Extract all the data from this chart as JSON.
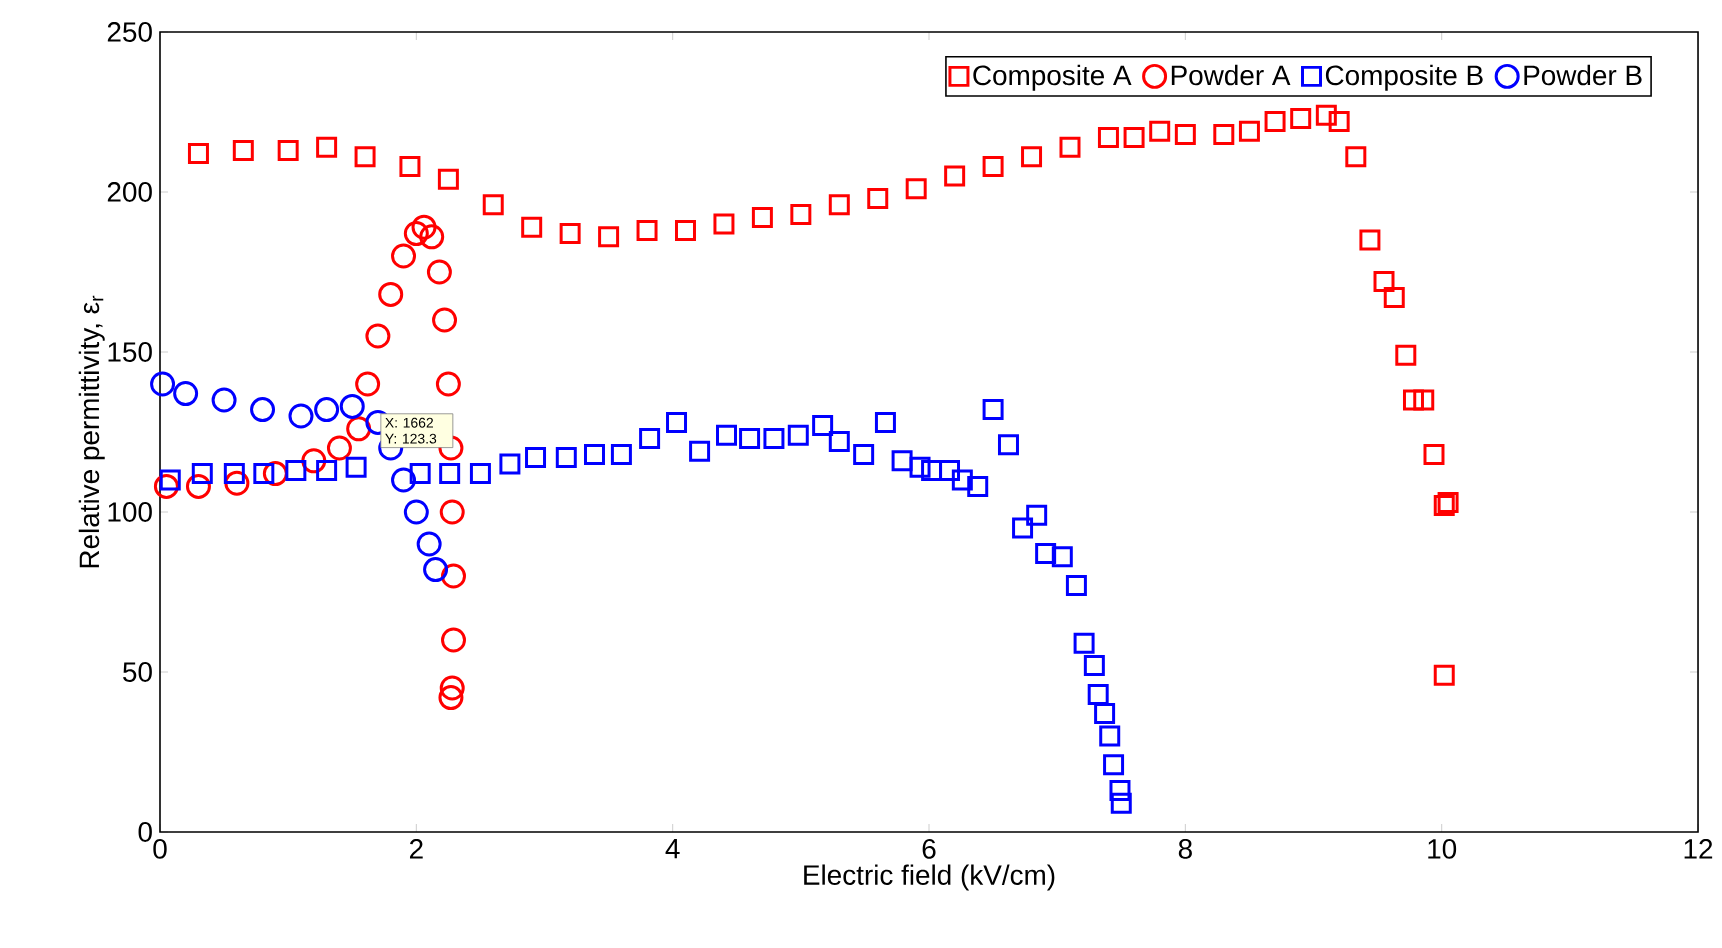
{
  "chart_data": {
    "type": "scatter",
    "xlabel": "Electric field (kV/cm)",
    "ylabel": "Relative permittivity, ε$_{r}$",
    "xlim": [
      0,
      12
    ],
    "ylim": [
      0,
      250
    ],
    "xticks": [
      0,
      2,
      4,
      6,
      8,
      10,
      12
    ],
    "yticks": [
      0,
      50,
      100,
      150,
      200,
      250
    ],
    "grid": false,
    "legend": "top right",
    "annotations": [
      "X: 1662 Y: 123.3"
    ],
    "series": [
      {
        "name": "Composite A",
        "color": "#ff0000",
        "marker": "square",
        "x": [
          0.3,
          0.65,
          1.0,
          1.3,
          1.6,
          1.95,
          2.25,
          2.6,
          2.9,
          3.2,
          3.5,
          3.8,
          4.1,
          4.4,
          4.7,
          5.0,
          5.3,
          5.6,
          5.9,
          6.2,
          6.5,
          6.8,
          7.1,
          7.4,
          7.6,
          7.8,
          8.0,
          8.3,
          8.5,
          8.7,
          8.9,
          9.1,
          9.2,
          9.33,
          9.44,
          9.55,
          9.63,
          9.72,
          9.78,
          9.86,
          9.94,
          10.02,
          10.05,
          10.02
        ],
        "values": [
          212,
          213,
          213,
          214,
          211,
          208,
          204,
          196,
          189,
          187,
          186,
          188,
          188,
          190,
          192,
          193,
          196,
          198,
          201,
          205,
          208,
          211,
          214,
          217,
          217,
          219,
          218,
          218,
          219,
          222,
          223,
          224,
          222,
          211,
          185,
          172,
          167,
          149,
          135,
          135,
          118,
          102,
          103,
          49
        ]
      },
      {
        "name": "Powder A",
        "color": "#ff0000",
        "marker": "circle",
        "x": [
          0.05,
          0.3,
          0.6,
          0.9,
          1.2,
          1.4,
          1.55,
          1.62,
          1.7,
          1.8,
          1.9,
          2.0,
          2.06,
          2.12,
          2.18,
          2.22,
          2.25,
          2.27,
          2.28,
          2.29,
          2.29,
          2.28,
          2.27
        ],
        "values": [
          108,
          108,
          109,
          112,
          116,
          120,
          126,
          140,
          155,
          168,
          180,
          187,
          189,
          186,
          175,
          160,
          140,
          120,
          100,
          80,
          60,
          45,
          42
        ]
      },
      {
        "name": "Composite B",
        "color": "#0000ff",
        "marker": "square",
        "x": [
          0.08,
          0.33,
          0.58,
          0.81,
          1.06,
          1.3,
          1.53,
          2.03,
          2.26,
          2.5,
          2.73,
          2.93,
          3.17,
          3.39,
          3.6,
          3.82,
          4.03,
          4.21,
          4.42,
          4.6,
          4.79,
          4.98,
          5.17,
          5.3,
          5.49,
          5.66,
          5.79,
          5.93,
          6.02,
          6.16,
          6.26,
          6.38,
          6.5,
          6.62,
          6.73,
          6.84,
          6.91,
          7.04,
          7.15,
          7.21,
          7.29,
          7.32,
          7.37,
          7.41,
          7.44,
          7.49,
          7.5
        ],
        "values": [
          110,
          112,
          112,
          112,
          113,
          113,
          114,
          112,
          112,
          112,
          115,
          117,
          117,
          118,
          118,
          123,
          128,
          119,
          124,
          123,
          123,
          124,
          127,
          122,
          118,
          128,
          116,
          114,
          113,
          113,
          110,
          108,
          132,
          121,
          95,
          99,
          87,
          86,
          77,
          59,
          52,
          43,
          37,
          30,
          21,
          13,
          9
        ]
      },
      {
        "name": "Powder B",
        "color": "#0000ff",
        "marker": "circle",
        "x": [
          0.02,
          0.2,
          0.5,
          0.8,
          1.1,
          1.3,
          1.5,
          1.7,
          1.8,
          1.9,
          2.0,
          2.1,
          2.15
        ],
        "values": [
          140,
          137,
          135,
          132,
          130,
          132,
          133,
          128,
          120,
          110,
          100,
          90,
          82
        ]
      }
    ]
  }
}
